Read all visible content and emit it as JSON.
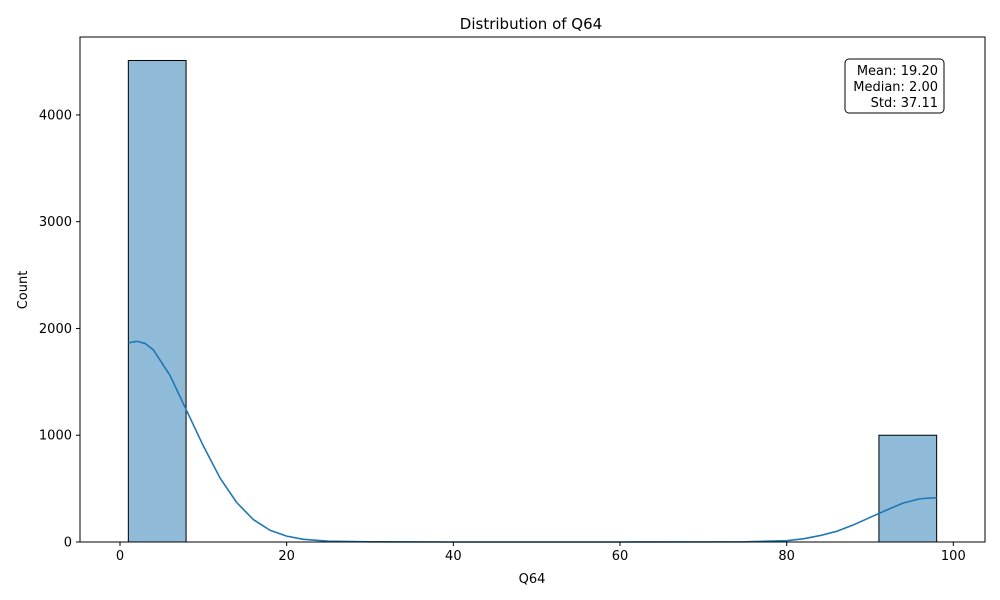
{
  "chart_data": {
    "type": "bar",
    "title": "Distribution of Q64",
    "xlabel": "Q64",
    "ylabel": "Count",
    "xlim": [
      -4.8,
      103.8
    ],
    "ylim": [
      0,
      4730
    ],
    "x_ticks": [
      0,
      20,
      40,
      60,
      80,
      100
    ],
    "y_ticks": [
      0,
      1000,
      2000,
      3000,
      4000
    ],
    "bins": [
      {
        "start": 1.0,
        "end": 7.93,
        "count": 4510
      },
      {
        "start": 7.93,
        "end": 14.86,
        "count": 0
      },
      {
        "start": 14.86,
        "end": 21.79,
        "count": 0
      },
      {
        "start": 21.79,
        "end": 28.71,
        "count": 0
      },
      {
        "start": 28.71,
        "end": 35.64,
        "count": 0
      },
      {
        "start": 35.64,
        "end": 42.57,
        "count": 0
      },
      {
        "start": 42.57,
        "end": 49.5,
        "count": 0
      },
      {
        "start": 49.5,
        "end": 56.43,
        "count": 0
      },
      {
        "start": 56.43,
        "end": 63.36,
        "count": 0
      },
      {
        "start": 63.36,
        "end": 70.29,
        "count": 0
      },
      {
        "start": 70.29,
        "end": 77.21,
        "count": 0
      },
      {
        "start": 77.21,
        "end": 84.14,
        "count": 0
      },
      {
        "start": 84.14,
        "end": 91.07,
        "count": 0
      },
      {
        "start": 91.07,
        "end": 98.0,
        "count": 1000
      }
    ],
    "kde": {
      "x": [
        1,
        2,
        3,
        4,
        6,
        8,
        10,
        12,
        14,
        16,
        18,
        20,
        22,
        25,
        30,
        40,
        60,
        75,
        80,
        82,
        84,
        86,
        88,
        90,
        92,
        94,
        96,
        98
      ],
      "y": [
        1865,
        1880,
        1860,
        1800,
        1560,
        1230,
        900,
        600,
        370,
        210,
        110,
        55,
        25,
        8,
        2,
        0,
        0,
        2,
        12,
        30,
        60,
        100,
        160,
        230,
        300,
        365,
        405,
        415
      ]
    },
    "annotations": {
      "mean": "Mean: 19.20",
      "median": "Median: 2.00",
      "std": "Std: 37.11"
    },
    "colors": {
      "bar_fill": "#1f77b4",
      "bar_fill_opacity": 0.5,
      "bar_edge": "#000000",
      "kde_line": "#1f77b4"
    }
  }
}
